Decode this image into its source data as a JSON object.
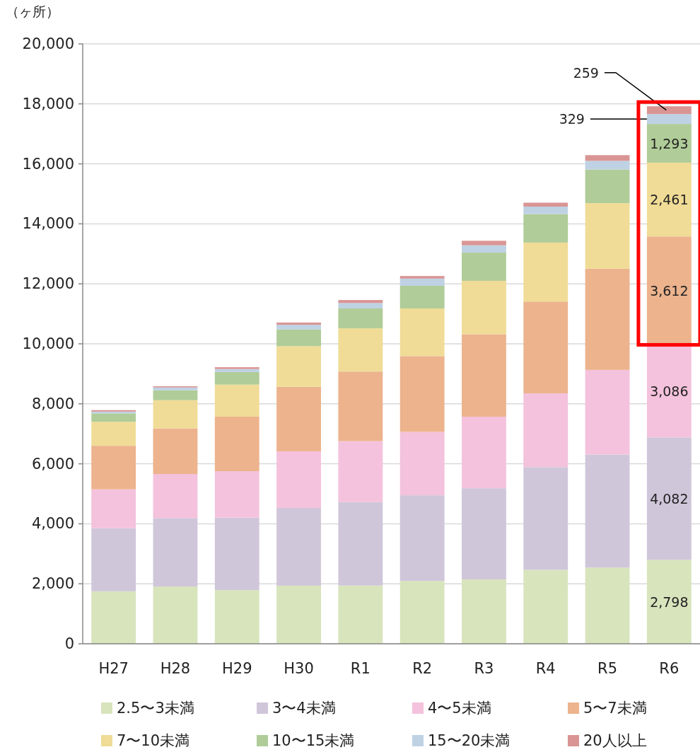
{
  "chart_data": {
    "type": "bar",
    "stacked": true,
    "ylabel": "（ヶ所）",
    "categories": [
      "H27",
      "H28",
      "H29",
      "H30",
      "R1",
      "R2",
      "R3",
      "R4",
      "R5",
      "R6"
    ],
    "series": [
      {
        "name": "2.5〜3未満",
        "color": "#d8e4bc",
        "values": [
          1750,
          1910,
          1790,
          1935,
          1940,
          2095,
          2145,
          2465,
          2540,
          2798
        ],
        "value_labels": [
          null,
          null,
          null,
          null,
          null,
          null,
          null,
          null,
          null,
          "2,798"
        ]
      },
      {
        "name": "3〜4未満",
        "color": "#d0c6da",
        "values": [
          2100,
          2280,
          2415,
          2595,
          2790,
          2855,
          3040,
          3425,
          3770,
          4082
        ],
        "value_labels": [
          null,
          null,
          null,
          null,
          null,
          null,
          null,
          null,
          null,
          "4,082"
        ]
      },
      {
        "name": "4〜5未満",
        "color": "#f4c2dc",
        "values": [
          1300,
          1470,
          1550,
          1885,
          2025,
          2115,
          2385,
          2460,
          2820,
          3086
        ],
        "value_labels": [
          null,
          null,
          null,
          null,
          null,
          null,
          null,
          null,
          null,
          "3,086"
        ]
      },
      {
        "name": "5〜7未満",
        "color": "#ecb38d",
        "values": [
          1450,
          1520,
          1815,
          2155,
          2320,
          2525,
          2750,
          3060,
          3375,
          3612
        ],
        "value_labels": [
          null,
          null,
          null,
          null,
          null,
          null,
          null,
          null,
          null,
          "3,612"
        ]
      },
      {
        "name": "7〜10未満",
        "color": "#f0dc96",
        "values": [
          800,
          940,
          1070,
          1350,
          1440,
          1590,
          1780,
          1965,
          2185,
          2461
        ],
        "value_labels": [
          null,
          null,
          null,
          null,
          null,
          null,
          null,
          null,
          null,
          "2,461"
        ]
      },
      {
        "name": "10〜15未満",
        "color": "#b0cc98",
        "values": [
          280,
          330,
          420,
          560,
          665,
          755,
          940,
          950,
          1120,
          1293
        ],
        "value_labels": [
          null,
          null,
          null,
          null,
          null,
          null,
          null,
          null,
          null,
          "1,293"
        ]
      },
      {
        "name": "15〜20未満",
        "color": "#bed2e4",
        "values": [
          60,
          95,
          100,
          155,
          180,
          240,
          245,
          250,
          290,
          329
        ],
        "value_labels": [
          null,
          null,
          null,
          null,
          null,
          null,
          null,
          null,
          null,
          "329"
        ]
      },
      {
        "name": "20人以上",
        "color": "#d99594",
        "values": [
          50,
          40,
          60,
          75,
          100,
          85,
          150,
          130,
          190,
          259
        ],
        "value_labels": [
          null,
          null,
          null,
          null,
          null,
          null,
          null,
          null,
          null,
          "259"
        ]
      }
    ],
    "ylim": [
      0,
      20000
    ],
    "yticks": [
      {
        "value": 0,
        "label": "0"
      },
      {
        "value": 2000,
        "label": "2,000"
      },
      {
        "value": 4000,
        "label": "4,000"
      },
      {
        "value": 6000,
        "label": "6,000"
      },
      {
        "value": 8000,
        "label": "8,000"
      },
      {
        "value": 10000,
        "label": "10,000"
      },
      {
        "value": 12000,
        "label": "12,000"
      },
      {
        "value": 14000,
        "label": "14,000"
      },
      {
        "value": 16000,
        "label": "16,000"
      },
      {
        "value": 18000,
        "label": "18,000"
      },
      {
        "value": 20000,
        "label": "20,000"
      }
    ],
    "grid": "y",
    "legend": "bottom"
  }
}
